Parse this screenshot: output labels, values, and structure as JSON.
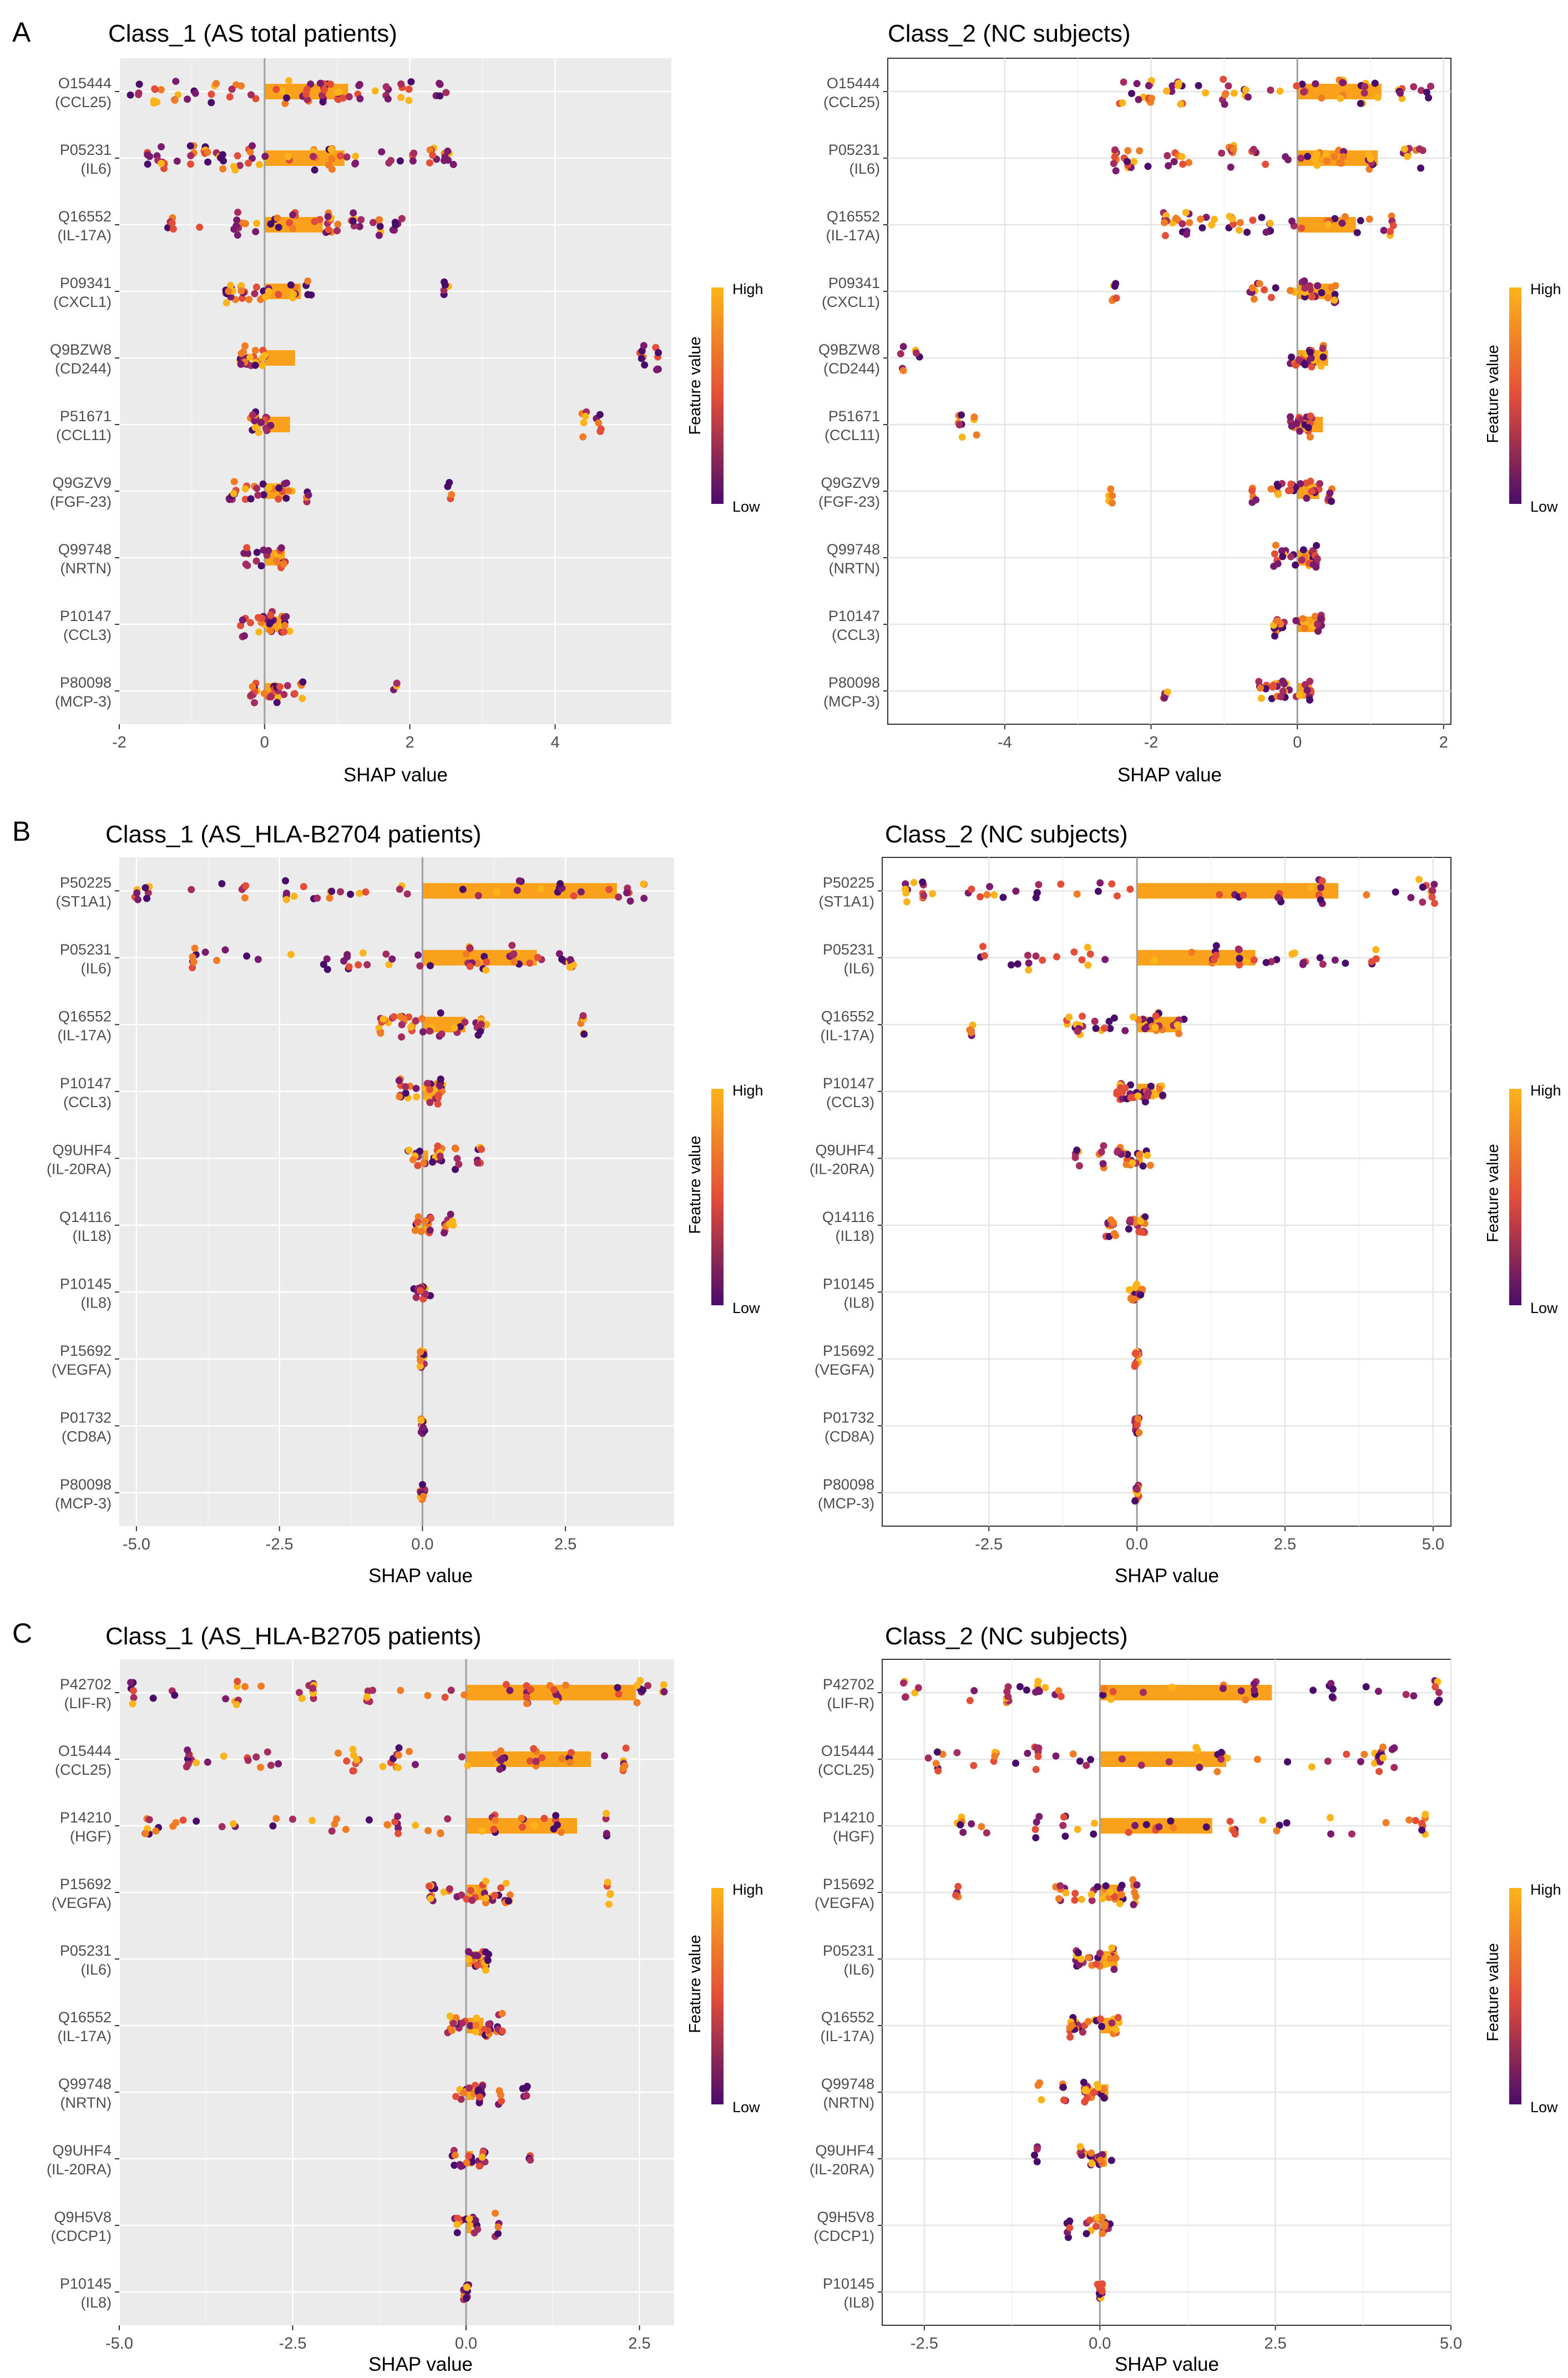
{
  "colors": {
    "high": "#FBB41A",
    "mid": "#E34E38",
    "low": "#4A0C6B",
    "bar": "#F9A11B",
    "grey_panel": "#EBEBEB",
    "zero_line": "#9E9E9E"
  },
  "legend": {
    "title": "Feature value",
    "high": "High",
    "low": "Low"
  },
  "chart_data": [
    {
      "panel": "A",
      "type": "bar+scatter",
      "style": "grey",
      "title": "Class_1 (AS total patients)",
      "xlabel": "SHAP value",
      "ylabel": "",
      "xlim": [
        -2.0,
        5.6
      ],
      "xticks": [
        -2,
        0,
        2,
        4
      ],
      "xtick_labels": [
        "-2",
        "0",
        "2",
        "4"
      ],
      "features": [
        {
          "id": "O15444",
          "name": "(CCL25)",
          "mean_abs_shap": 1.15,
          "point_range": [
            -1.85,
            2.5
          ],
          "points": [
            -1.75,
            -1.5,
            -1.25,
            -0.7,
            0.3,
            0.6,
            0.8,
            1.0,
            1.3,
            1.7,
            2.0,
            2.4
          ]
        },
        {
          "id": "P05231",
          "name": "(IL6)",
          "mean_abs_shap": 1.1,
          "point_range": [
            -1.7,
            2.6
          ],
          "points": [
            -1.6,
            -1.4,
            -1.0,
            -0.8,
            -0.6,
            -0.4,
            -0.2,
            0.7,
            0.9,
            2.3,
            2.5
          ]
        },
        {
          "id": "Q16552",
          "name": "(IL-17A)",
          "mean_abs_shap": 0.8,
          "point_range": [
            -1.35,
            1.9
          ],
          "points": [
            -1.3,
            -0.4,
            0.4,
            0.9,
            1.2,
            1.6,
            1.8
          ]
        },
        {
          "id": "P09341",
          "name": "(CXCL1)",
          "mean_abs_shap": 0.5,
          "point_range": [
            -0.55,
            0.65
          ],
          "points": [
            -0.5,
            -0.3,
            0.6,
            2.5
          ]
        },
        {
          "id": "Q9BZW8",
          "name": "(CD244)",
          "mean_abs_shap": 0.42,
          "point_range": [
            -0.35,
            0.1
          ],
          "points": [
            -0.3,
            -0.1,
            5.2,
            5.4
          ]
        },
        {
          "id": "P51671",
          "name": "(CCL11)",
          "mean_abs_shap": 0.35,
          "point_range": [
            -0.2,
            0.1
          ],
          "points": [
            -0.15,
            4.4,
            4.6
          ]
        },
        {
          "id": "Q9GZV9",
          "name": "(FGF-23)",
          "mean_abs_shap": 0.3,
          "point_range": [
            -0.5,
            0.4
          ],
          "points": [
            -0.45,
            0.3,
            0.6,
            2.55
          ]
        },
        {
          "id": "Q99748",
          "name": "(NRTN)",
          "mean_abs_shap": 0.28,
          "point_range": [
            -0.3,
            0.3
          ],
          "points": [
            -0.25,
            0.25
          ]
        },
        {
          "id": "P10147",
          "name": "(CCL3)",
          "mean_abs_shap": 0.26,
          "point_range": [
            -0.35,
            0.35
          ],
          "points": [
            -0.3,
            0.1,
            0.3
          ]
        },
        {
          "id": "P80098",
          "name": "(MCP-3)",
          "mean_abs_shap": 0.2,
          "point_range": [
            -0.2,
            0.5
          ],
          "points": [
            -0.15,
            0.2,
            0.5,
            1.8
          ]
        }
      ]
    },
    {
      "panel": "",
      "type": "bar+scatter",
      "style": "white",
      "title": "Class_2 (NC subjects)",
      "xlabel": "SHAP value",
      "ylabel": "",
      "xlim": [
        -5.6,
        2.1
      ],
      "xticks": [
        -4,
        -2,
        0,
        2
      ],
      "xtick_labels": [
        "-4",
        "-2",
        "0",
        "2"
      ],
      "features": [
        {
          "id": "O15444",
          "name": "(CCL25)",
          "mean_abs_shap": 1.15,
          "point_range": [
            -2.5,
            1.85
          ],
          "points": [
            -2.4,
            -2.0,
            -1.6,
            -1.0,
            -0.7,
            0.6,
            0.9,
            1.4,
            1.8
          ]
        },
        {
          "id": "P05231",
          "name": "(IL6)",
          "mean_abs_shap": 1.1,
          "point_range": [
            -2.6,
            1.7
          ],
          "points": [
            -2.5,
            -2.3,
            -0.9,
            -0.6,
            0.3,
            0.6,
            1.0,
            1.5,
            1.7
          ]
        },
        {
          "id": "Q16552",
          "name": "(IL-17A)",
          "mean_abs_shap": 0.8,
          "point_range": [
            -1.9,
            1.35
          ],
          "points": [
            -1.8,
            -1.5,
            -0.9,
            -0.4,
            0.4,
            1.3
          ]
        },
        {
          "id": "P09341",
          "name": "(CXCL1)",
          "mean_abs_shap": 0.5,
          "point_range": [
            -0.65,
            0.55
          ],
          "points": [
            -2.5,
            -0.6,
            0.1,
            0.5
          ]
        },
        {
          "id": "Q9BZW8",
          "name": "(CD244)",
          "mean_abs_shap": 0.42,
          "point_range": [
            -0.1,
            0.35
          ],
          "points": [
            -5.4,
            -5.2,
            0.2,
            0.35
          ]
        },
        {
          "id": "P51671",
          "name": "(CCL11)",
          "mean_abs_shap": 0.35,
          "point_range": [
            -0.1,
            0.2
          ],
          "points": [
            -4.6,
            -4.4,
            0.15
          ]
        },
        {
          "id": "Q9GZV9",
          "name": "(FGF-23)",
          "mean_abs_shap": 0.3,
          "point_range": [
            -0.4,
            0.5
          ],
          "points": [
            -2.55,
            -0.6,
            0.2,
            0.45
          ]
        },
        {
          "id": "Q99748",
          "name": "(NRTN)",
          "mean_abs_shap": 0.28,
          "point_range": [
            -0.3,
            0.3
          ],
          "points": [
            -0.3,
            0.25
          ]
        },
        {
          "id": "P10147",
          "name": "(CCL3)",
          "mean_abs_shap": 0.26,
          "point_range": [
            -0.35,
            0.35
          ],
          "points": [
            -0.3,
            0.1,
            0.3
          ]
        },
        {
          "id": "P80098",
          "name": "(MCP-3)",
          "mean_abs_shap": 0.2,
          "point_range": [
            -0.5,
            0.2
          ],
          "points": [
            -1.8,
            -0.5,
            -0.2,
            0.15
          ]
        }
      ]
    },
    {
      "panel": "B",
      "type": "bar+scatter",
      "style": "grey",
      "title": "Class_1 (AS_HLA-B2704 patients)",
      "xlabel": "SHAP value",
      "ylabel": "",
      "xlim": [
        -5.3,
        4.4
      ],
      "xticks": [
        -5,
        -2.5,
        0,
        2.5
      ],
      "xtick_labels": [
        "-5.0",
        "-2.5",
        "0.0",
        "2.5"
      ],
      "features": [
        {
          "id": "P50225",
          "name": "(ST1A1)",
          "mean_abs_shap": 3.4,
          "point_range": [
            -5.0,
            4.0
          ],
          "points": [
            -5.0,
            -4.8,
            -3.1,
            -2.4,
            1.7,
            2.4,
            3.6,
            3.9
          ]
        },
        {
          "id": "P05231",
          "name": "(IL6)",
          "mean_abs_shap": 2.0,
          "point_range": [
            -4.0,
            2.7
          ],
          "points": [
            -4.0,
            -1.7,
            -1.3,
            0.8,
            1.1,
            1.6,
            2.6
          ]
        },
        {
          "id": "Q16552",
          "name": "(IL-17A)",
          "mean_abs_shap": 0.75,
          "point_range": [
            -0.8,
            1.2
          ],
          "points": [
            -0.7,
            -0.35,
            0.3,
            1.0,
            2.8
          ]
        },
        {
          "id": "P10147",
          "name": "(CCL3)",
          "mean_abs_shap": 0.3,
          "point_range": [
            -0.45,
            0.4
          ],
          "points": [
            -0.4,
            0.1,
            0.3
          ]
        },
        {
          "id": "Q9UHF4",
          "name": "(IL-20RA)",
          "mean_abs_shap": 0.1,
          "point_range": [
            -0.25,
            0.35
          ],
          "points": [
            0.3,
            0.6,
            1.0
          ]
        },
        {
          "id": "Q14116",
          "name": "(IL18)",
          "mean_abs_shap": 0.08,
          "point_range": [
            -0.15,
            0.15
          ],
          "points": [
            0.4,
            0.5
          ]
        },
        {
          "id": "P10145",
          "name": "(IL8)",
          "mean_abs_shap": 0.06,
          "point_range": [
            -0.15,
            0.15
          ],
          "points": []
        },
        {
          "id": "P15692",
          "name": "(VEGFA)",
          "mean_abs_shap": 0.01,
          "point_range": [
            -0.04,
            0.04
          ],
          "points": []
        },
        {
          "id": "P01732",
          "name": "(CD8A)",
          "mean_abs_shap": 0.01,
          "point_range": [
            -0.04,
            0.04
          ],
          "points": []
        },
        {
          "id": "P80098",
          "name": "(MCP-3)",
          "mean_abs_shap": 0.01,
          "point_range": [
            -0.04,
            0.04
          ],
          "points": []
        }
      ]
    },
    {
      "panel": "",
      "type": "bar+scatter",
      "style": "white",
      "title": "Class_2  (NC subjects)",
      "xlabel": "SHAP value",
      "ylabel": "",
      "xlim": [
        -4.3,
        5.3
      ],
      "xticks": [
        -2.5,
        0,
        2.5,
        5
      ],
      "xtick_labels": [
        "-2.5",
        "0.0",
        "2.5",
        "5.0"
      ],
      "features": [
        {
          "id": "P50225",
          "name": "(ST1A1)",
          "mean_abs_shap": 3.4,
          "point_range": [
            -4.0,
            5.0
          ],
          "points": [
            -3.9,
            -3.6,
            -1.7,
            2.4,
            3.1,
            4.8,
            5.0
          ]
        },
        {
          "id": "P05231",
          "name": "(IL6)",
          "mean_abs_shap": 2.0,
          "point_range": [
            -2.7,
            4.0
          ],
          "points": [
            -2.6,
            -1.8,
            -0.8,
            1.3,
            1.7,
            4.0
          ]
        },
        {
          "id": "Q16552",
          "name": "(IL-17A)",
          "mean_abs_shap": 0.75,
          "point_range": [
            -1.2,
            0.8
          ],
          "points": [
            -2.8,
            -1.0,
            0.35,
            0.7
          ]
        },
        {
          "id": "P10147",
          "name": "(CCL3)",
          "mean_abs_shap": 0.3,
          "point_range": [
            -0.3,
            0.45
          ],
          "points": [
            -0.3,
            0.15,
            0.4
          ]
        },
        {
          "id": "Q9UHF4",
          "name": "(IL-20RA)",
          "mean_abs_shap": 0.1,
          "point_range": [
            -0.35,
            0.25
          ],
          "points": [
            -1.0,
            -0.6,
            -0.3
          ]
        },
        {
          "id": "Q14116",
          "name": "(IL18)",
          "mean_abs_shap": 0.08,
          "point_range": [
            -0.15,
            0.15
          ],
          "points": [
            -0.5,
            -0.4
          ]
        },
        {
          "id": "P10145",
          "name": "(IL8)",
          "mean_abs_shap": 0.06,
          "point_range": [
            -0.15,
            0.15
          ],
          "points": []
        },
        {
          "id": "P15692",
          "name": "(VEGFA)",
          "mean_abs_shap": 0.01,
          "point_range": [
            -0.04,
            0.04
          ],
          "points": []
        },
        {
          "id": "P01732",
          "name": "(CD8A)",
          "mean_abs_shap": 0.01,
          "point_range": [
            -0.04,
            0.04
          ],
          "points": []
        },
        {
          "id": "P80098",
          "name": "(MCP-3)",
          "mean_abs_shap": 0.01,
          "point_range": [
            -0.04,
            0.04
          ],
          "points": []
        }
      ]
    },
    {
      "panel": "C",
      "type": "bar+scatter",
      "style": "grey",
      "title": "Class_1 (AS_HLA-B2705 patients)",
      "xlabel": "SHAP value",
      "ylabel": "",
      "xlim": [
        -5.0,
        3.0
      ],
      "xticks": [
        -5,
        -2.5,
        0,
        2.5
      ],
      "xtick_labels": [
        "-5.0",
        "-2.5",
        "0.0",
        "2.5"
      ],
      "features": [
        {
          "id": "P42702",
          "name": "(LIF-R)",
          "mean_abs_shap": 2.45,
          "point_range": [
            -4.8,
            2.9
          ],
          "points": [
            -4.8,
            -3.3,
            -2.2,
            -1.4,
            0.9,
            1.3,
            2.5,
            2.85
          ]
        },
        {
          "id": "O15444",
          "name": "(CCL25)",
          "mean_abs_shap": 1.8,
          "point_range": [
            -4.1,
            2.5
          ],
          "points": [
            -4.0,
            -1.6,
            -1.0,
            0.5,
            1.0,
            1.5,
            2.3
          ]
        },
        {
          "id": "P14210",
          "name": "(HGF)",
          "mean_abs_shap": 1.6,
          "point_range": [
            -4.6,
            2.1
          ],
          "points": [
            -4.6,
            -1.9,
            -1.0,
            0.4,
            0.8,
            1.3,
            2.0
          ]
        },
        {
          "id": "P15692",
          "name": "(VEGFA)",
          "mean_abs_shap": 0.3,
          "point_range": [
            -0.5,
            0.6
          ],
          "points": [
            -0.5,
            0.3,
            0.6,
            2.05
          ]
        },
        {
          "id": "P05231",
          "name": "(IL6)",
          "mean_abs_shap": 0.25,
          "point_range": [
            0.0,
            0.35
          ],
          "points": [
            0.3
          ]
        },
        {
          "id": "Q16552",
          "name": "(IL-17A)",
          "mean_abs_shap": 0.25,
          "point_range": [
            -0.3,
            0.55
          ],
          "points": [
            -0.2,
            0.3,
            0.5
          ]
        },
        {
          "id": "Q99748",
          "name": "(NRTN)",
          "mean_abs_shap": 0.12,
          "point_range": [
            -0.15,
            0.25
          ],
          "points": [
            0.2,
            0.5,
            0.85
          ]
        },
        {
          "id": "Q9UHF4",
          "name": "(IL-20RA)",
          "mean_abs_shap": 0.1,
          "point_range": [
            -0.2,
            0.3
          ],
          "points": [
            0.25,
            0.9
          ]
        },
        {
          "id": "Q9H5V8",
          "name": "(CDCP1)",
          "mean_abs_shap": 0.08,
          "point_range": [
            -0.2,
            0.2
          ],
          "points": [
            0.45
          ]
        },
        {
          "id": "P10145",
          "name": "(IL8)",
          "mean_abs_shap": 0.01,
          "point_range": [
            -0.04,
            0.04
          ],
          "points": []
        }
      ]
    },
    {
      "panel": "",
      "type": "bar+scatter",
      "style": "white",
      "title": "Class_2  (NC subjects)",
      "xlabel": "SHAP value",
      "ylabel": "",
      "xlim": [
        -3.1,
        5.0
      ],
      "xticks": [
        -2.5,
        0,
        2.5,
        5
      ],
      "xtick_labels": [
        "-2.5",
        "0.0",
        "2.5",
        "5.0"
      ],
      "features": [
        {
          "id": "P42702",
          "name": "(LIF-R)",
          "mean_abs_shap": 2.45,
          "point_range": [
            -2.9,
            4.8
          ],
          "points": [
            -2.8,
            -1.3,
            -0.9,
            2.2,
            3.3,
            4.8
          ]
        },
        {
          "id": "O15444",
          "name": "(CCL25)",
          "mean_abs_shap": 1.8,
          "point_range": [
            -2.5,
            4.1
          ],
          "points": [
            -2.3,
            -1.5,
            -0.9,
            1.4,
            1.7,
            4.0,
            4.2
          ]
        },
        {
          "id": "P14210",
          "name": "(HGF)",
          "mean_abs_shap": 1.6,
          "point_range": [
            -2.1,
            4.6
          ],
          "points": [
            -2.0,
            -0.9,
            -0.5,
            1.9,
            4.6
          ]
        },
        {
          "id": "P15692",
          "name": "(VEGFA)",
          "mean_abs_shap": 0.3,
          "point_range": [
            -0.6,
            0.5
          ],
          "points": [
            -2.05,
            -0.6,
            0.3,
            0.5
          ]
        },
        {
          "id": "P05231",
          "name": "(IL6)",
          "mean_abs_shap": 0.25,
          "point_range": [
            -0.35,
            0.2
          ],
          "points": [
            -0.3,
            0.2
          ]
        },
        {
          "id": "Q16552",
          "name": "(IL-17A)",
          "mean_abs_shap": 0.25,
          "point_range": [
            -0.55,
            0.3
          ],
          "points": [
            -0.4,
            0.2
          ]
        },
        {
          "id": "Q99748",
          "name": "(NRTN)",
          "mean_abs_shap": 0.12,
          "point_range": [
            -0.25,
            0.15
          ],
          "points": [
            -0.85,
            -0.5,
            -0.2
          ]
        },
        {
          "id": "Q9UHF4",
          "name": "(IL-20RA)",
          "mean_abs_shap": 0.1,
          "point_range": [
            -0.3,
            0.2
          ],
          "points": [
            -0.9,
            -0.25
          ]
        },
        {
          "id": "Q9H5V8",
          "name": "(CDCP1)",
          "mean_abs_shap": 0.08,
          "point_range": [
            -0.2,
            0.2
          ],
          "points": [
            -0.45
          ]
        },
        {
          "id": "P10145",
          "name": "(IL8)",
          "mean_abs_shap": 0.01,
          "point_range": [
            -0.04,
            0.04
          ],
          "points": []
        }
      ]
    }
  ]
}
